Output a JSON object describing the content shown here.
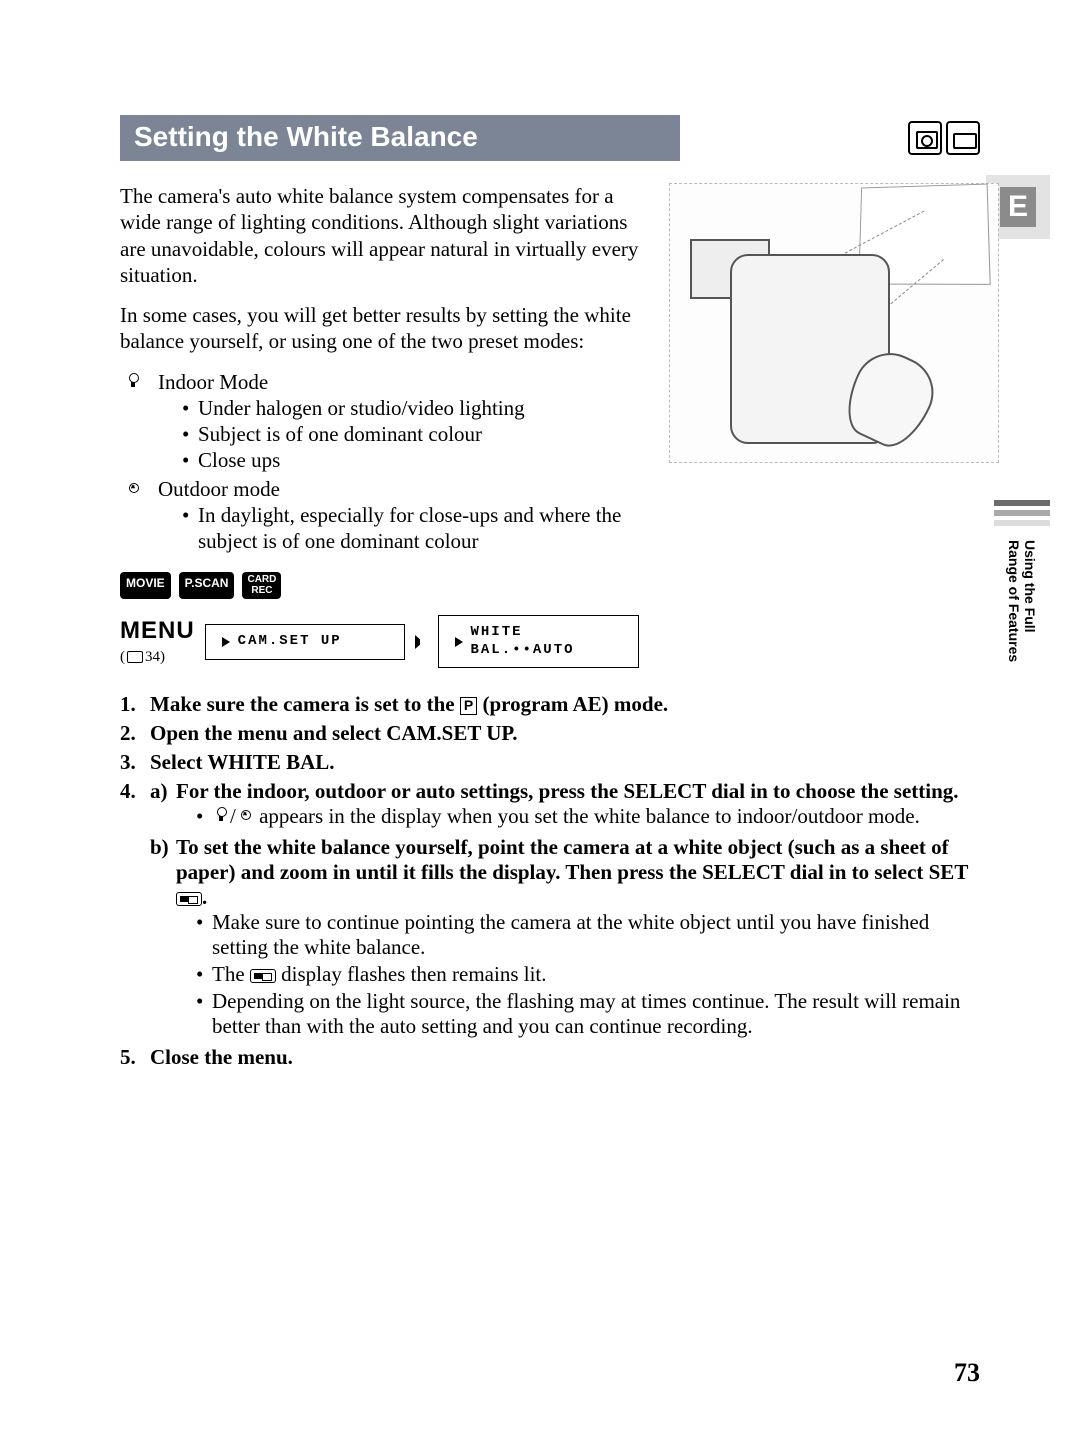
{
  "colors": {
    "header_bg": "#7b8596",
    "header_text": "#ffffff",
    "body_text": "#000000",
    "page_bg": "#ffffff",
    "chip_bg": "#000000",
    "chip_text": "#ffffff",
    "sidebar_bars": [
      "#6b6b6b",
      "#a9a9a9",
      "#dcdcdc"
    ],
    "e_badge_bg": "#e3e3e3",
    "e_badge_fill": "#8b8b8b"
  },
  "typography": {
    "body_family": "Times New Roman",
    "ui_family": "Arial",
    "body_size_pt": 16,
    "header_size_pt": 21,
    "step_bold": true
  },
  "header": {
    "title": "Setting the White Balance"
  },
  "intro": {
    "p1": "The camera's auto white balance system compensates for a wide range of lighting conditions. Although slight variations are unavoidable, colours will appear natural in virtually every situation.",
    "p2": "In some cases, you will get better results by setting the white balance yourself, or using one of the two preset modes:"
  },
  "modes": [
    {
      "icon": "bulb-icon",
      "name": "Indoor Mode",
      "items": [
        "Under halogen or studio/video lighting",
        "Subject is of one dominant colour",
        "Close ups"
      ]
    },
    {
      "icon": "sun-icon",
      "name": "Outdoor mode",
      "items": [
        "In daylight, especially for close-ups and where the subject is of one dominant colour"
      ]
    }
  ],
  "chips": {
    "movie": "MOVIE",
    "pscan": "P.SCAN",
    "card_line1": "CARD",
    "card_line2": "REC"
  },
  "menu_path": {
    "label": "MENU",
    "page_ref_prefix": "(",
    "page_ref_num": "34)",
    "crumb1": "CAM.SET UP",
    "crumb2": "WHITE BAL.••AUTO"
  },
  "steps": {
    "s1_a": "Make sure the camera is set to the ",
    "s1_b": " (program AE) mode.",
    "p_icon_label": "P",
    "s2": "Open the menu and select CAM.SET UP.",
    "s3": "Select WHITE BAL.",
    "s4a_head": "For the indoor, outdoor or auto settings, press the SELECT dial in to choose the setting.",
    "s4a_note_a": "/",
    "s4a_note_b": " appears in the display when you set the white balance to indoor/outdoor mode.",
    "s4b_head_a": "To set the white balance yourself, point the camera at a white object (such as a sheet of paper) and zoom in until it fills the display. Then press the SELECT dial in to select SET ",
    "s4b_head_b": ".",
    "s4b_notes": [
      "Make sure to continue pointing the camera at the white object until you have finished setting the white balance.",
      "The ",
      " display flashes then remains lit.",
      "Depending on the light source, the flashing may at times continue. The result will remain better than with the auto setting and you can continue recording."
    ],
    "s5": "Close the menu."
  },
  "side_tab": {
    "line1": "Using the Full",
    "line2": "Range of Features"
  },
  "e_badge": "E",
  "page_number": "73"
}
